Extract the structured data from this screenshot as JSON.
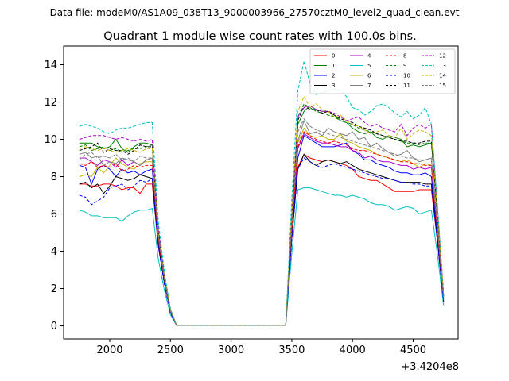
{
  "chart_data": {
    "type": "line",
    "suptitle": "Data file: modeM0/AS1A09_038T13_9000003966_27570cztM0_level2_quad_clean.evt",
    "title": "Quadrant 1 module wise count rates with 100.0s bins.",
    "xlabel": "",
    "ylabel": "",
    "x_offset_label": "+3.4204e8",
    "xlim": [
      1620,
      4870
    ],
    "ylim": [
      -0.7,
      15.0
    ],
    "xticks": [
      2000,
      2500,
      3000,
      3500,
      4000,
      4500
    ],
    "xtick_labels": [
      "2000",
      "2500",
      "3000",
      "3500",
      "4000",
      "4500"
    ],
    "yticks": [
      0,
      2,
      4,
      6,
      8,
      10,
      12,
      14
    ],
    "ytick_labels": [
      "0",
      "2",
      "4",
      "6",
      "8",
      "10",
      "12",
      "14"
    ],
    "grid": false,
    "legend_location": "upper-right",
    "legend_columns": 4,
    "x": [
      1750,
      1800,
      1850,
      1900,
      1950,
      2000,
      2050,
      2100,
      2150,
      2200,
      2250,
      2300,
      2350,
      2400,
      2450,
      2500,
      2550,
      2650,
      2750,
      2850,
      2950,
      3050,
      3150,
      3250,
      3350,
      3450,
      3500,
      3550,
      3600,
      3650,
      3700,
      3750,
      3800,
      3850,
      3900,
      3950,
      4000,
      4050,
      4100,
      4150,
      4200,
      4250,
      4300,
      4350,
      4400,
      4450,
      4500,
      4550,
      4600,
      4650,
      4700,
      4750
    ],
    "series": [
      {
        "name": "0",
        "color": "#ff0000",
        "dash": "solid",
        "values": [
          7.6,
          7.6,
          7.5,
          7.5,
          7.6,
          7.6,
          7.5,
          7.3,
          7.4,
          7.4,
          7.1,
          7.6,
          7.6,
          4.3,
          2.3,
          0.8,
          0.03,
          0.03,
          0.03,
          0.03,
          0.03,
          0.03,
          0.03,
          0.03,
          0.03,
          0.03,
          4.8,
          8.5,
          9.2,
          9.0,
          8.9,
          8.8,
          8.9,
          8.8,
          8.7,
          8.6,
          8.4,
          8.0,
          7.9,
          7.8,
          7.8,
          7.6,
          7.4,
          7.2,
          7.2,
          7.2,
          7.2,
          7.3,
          7.3,
          7.3,
          4.5,
          1.3
        ]
      },
      {
        "name": "1",
        "color": "#008000",
        "dash": "solid",
        "values": [
          9.8,
          9.8,
          9.8,
          9.6,
          9.5,
          9.6,
          10.0,
          9.5,
          9.3,
          9.6,
          9.8,
          9.8,
          9.7,
          5.0,
          2.6,
          0.9,
          0.03,
          0.03,
          0.03,
          0.03,
          0.03,
          0.03,
          0.03,
          0.03,
          0.03,
          0.03,
          5.8,
          10.8,
          11.5,
          11.8,
          11.6,
          11.5,
          11.5,
          11.3,
          11.0,
          10.9,
          10.6,
          10.4,
          10.3,
          10.4,
          10.1,
          10.0,
          10.2,
          10.1,
          10.0,
          9.6,
          9.7,
          9.6,
          9.7,
          9.8,
          6.0,
          1.6
        ]
      },
      {
        "name": "2",
        "color": "#0000ff",
        "dash": "solid",
        "values": [
          8.6,
          8.5,
          7.6,
          8.4,
          8.6,
          8.4,
          8.0,
          8.4,
          8.2,
          8.3,
          8.1,
          8.3,
          8.4,
          4.6,
          2.4,
          0.8,
          0.03,
          0.03,
          0.03,
          0.03,
          0.03,
          0.03,
          0.03,
          0.03,
          0.03,
          0.03,
          5.0,
          9.0,
          10.2,
          10.0,
          9.8,
          9.6,
          9.6,
          9.6,
          9.7,
          9.8,
          9.4,
          9.2,
          8.9,
          8.9,
          8.7,
          8.6,
          8.5,
          8.3,
          8.2,
          8.2,
          8.1,
          8.1,
          8.2,
          8.0,
          4.9,
          1.4
        ]
      },
      {
        "name": "3",
        "color": "#000000",
        "dash": "solid",
        "values": [
          7.6,
          7.7,
          7.4,
          7.6,
          7.1,
          7.5,
          8.0,
          7.9,
          7.8,
          7.9,
          8.1,
          8.0,
          7.9,
          4.4,
          2.3,
          0.8,
          0.03,
          0.03,
          0.03,
          0.03,
          0.03,
          0.03,
          0.03,
          0.03,
          0.03,
          0.03,
          4.8,
          8.4,
          9.2,
          8.8,
          8.6,
          8.8,
          8.9,
          8.8,
          8.7,
          8.8,
          8.6,
          8.4,
          8.3,
          8.2,
          8.1,
          8.0,
          7.9,
          7.8,
          7.7,
          7.7,
          7.7,
          7.7,
          7.6,
          7.6,
          4.6,
          1.3
        ]
      },
      {
        "name": "4",
        "color": "#b000d0",
        "dash": "solid",
        "values": [
          9.0,
          9.0,
          8.8,
          8.6,
          8.9,
          8.8,
          8.5,
          8.9,
          8.6,
          8.8,
          8.6,
          8.9,
          8.9,
          4.8,
          2.5,
          0.8,
          0.03,
          0.03,
          0.03,
          0.03,
          0.03,
          0.03,
          0.03,
          0.03,
          0.03,
          0.03,
          5.2,
          9.5,
          10.3,
          10.1,
          9.9,
          9.8,
          9.8,
          9.7,
          9.6,
          9.6,
          9.4,
          9.3,
          9.0,
          9.1,
          8.9,
          8.8,
          8.8,
          8.7,
          8.6,
          8.6,
          8.4,
          8.5,
          8.4,
          8.5,
          5.1,
          1.4
        ]
      },
      {
        "name": "5",
        "color": "#00c0c0",
        "dash": "solid",
        "values": [
          6.2,
          6.1,
          5.9,
          5.9,
          5.8,
          5.8,
          5.8,
          5.6,
          5.9,
          6.1,
          6.2,
          6.2,
          6.3,
          3.6,
          1.9,
          0.6,
          0.03,
          0.03,
          0.03,
          0.03,
          0.03,
          0.03,
          0.03,
          0.03,
          0.03,
          0.03,
          3.9,
          7.3,
          7.4,
          7.4,
          7.3,
          7.2,
          7.1,
          7.0,
          7.0,
          6.9,
          7.0,
          6.9,
          6.8,
          6.6,
          6.5,
          6.5,
          6.4,
          6.2,
          6.3,
          6.4,
          6.3,
          6.0,
          6.1,
          6.2,
          3.8,
          1.1
        ]
      },
      {
        "name": "6",
        "color": "#c8b400",
        "dash": "solid",
        "values": [
          8.0,
          8.1,
          8.0,
          8.5,
          8.2,
          8.6,
          9.0,
          8.7,
          8.5,
          8.4,
          8.7,
          8.8,
          8.8,
          4.8,
          2.5,
          0.8,
          0.03,
          0.03,
          0.03,
          0.03,
          0.03,
          0.03,
          0.03,
          0.03,
          0.03,
          0.03,
          5.3,
          9.8,
          10.6,
          10.2,
          10.1,
          10.2,
          10.0,
          10.0,
          10.3,
          9.9,
          9.8,
          9.6,
          9.5,
          9.4,
          9.2,
          9.1,
          9.0,
          8.9,
          8.8,
          8.9,
          8.7,
          8.5,
          8.7,
          8.6,
          5.2,
          1.5
        ]
      },
      {
        "name": "7",
        "color": "#808080",
        "dash": "solid",
        "values": [
          9.2,
          9.3,
          9.0,
          9.1,
          8.6,
          8.8,
          8.7,
          9.0,
          8.9,
          8.8,
          8.6,
          8.9,
          9.0,
          4.9,
          2.5,
          0.8,
          0.03,
          0.03,
          0.03,
          0.03,
          0.03,
          0.03,
          0.03,
          0.03,
          0.03,
          0.03,
          5.5,
          9.9,
          11.0,
          10.3,
          10.4,
          10.2,
          10.6,
          10.4,
          10.3,
          10.2,
          10.4,
          10.0,
          10.1,
          9.6,
          9.8,
          9.5,
          9.3,
          9.1,
          9.2,
          9.4,
          9.0,
          8.8,
          8.9,
          9.0,
          5.4,
          1.5
        ]
      },
      {
        "name": "8",
        "color": "#ff0000",
        "dash": "dashed",
        "values": [
          8.7,
          8.6,
          8.8,
          8.5,
          8.6,
          8.5,
          8.7,
          8.3,
          8.4,
          8.6,
          8.5,
          8.6,
          8.6,
          4.7,
          2.4,
          0.8,
          0.03,
          0.03,
          0.03,
          0.03,
          0.03,
          0.03,
          0.03,
          0.03,
          0.03,
          0.03,
          5.2,
          9.6,
          10.4,
          10.2,
          10.0,
          9.9,
          9.8,
          9.9,
          9.8,
          9.7,
          9.5,
          9.4,
          9.4,
          9.3,
          9.2,
          9.1,
          9.0,
          8.9,
          8.8,
          8.8,
          8.7,
          8.7,
          8.6,
          8.6,
          5.2,
          1.4
        ]
      },
      {
        "name": "9",
        "color": "#008000",
        "dash": "dashed",
        "values": [
          9.6,
          9.7,
          9.4,
          9.5,
          9.6,
          9.4,
          9.5,
          9.3,
          9.4,
          9.5,
          9.5,
          9.6,
          9.7,
          5.1,
          2.6,
          0.9,
          0.03,
          0.03,
          0.03,
          0.03,
          0.03,
          0.03,
          0.03,
          0.03,
          0.03,
          0.03,
          6.0,
          11.2,
          11.9,
          11.7,
          11.5,
          11.4,
          11.3,
          11.2,
          11.0,
          10.9,
          10.8,
          10.6,
          10.5,
          10.4,
          10.3,
          10.2,
          10.1,
          10.0,
          9.9,
          9.8,
          9.8,
          9.7,
          9.8,
          9.8,
          5.9,
          1.6
        ]
      },
      {
        "name": "10",
        "color": "#0000ff",
        "dash": "dashed",
        "values": [
          7.0,
          6.9,
          6.5,
          6.7,
          6.9,
          7.4,
          7.5,
          7.6,
          7.3,
          7.5,
          7.8,
          7.7,
          7.9,
          4.3,
          2.2,
          0.7,
          0.03,
          0.03,
          0.03,
          0.03,
          0.03,
          0.03,
          0.03,
          0.03,
          0.03,
          0.03,
          4.6,
          8.4,
          9.0,
          8.8,
          8.6,
          8.5,
          8.6,
          8.7,
          8.6,
          8.5,
          8.4,
          8.3,
          8.2,
          8.1,
          8.0,
          7.9,
          7.9,
          7.8,
          7.7,
          7.7,
          7.6,
          7.6,
          7.5,
          7.5,
          4.5,
          1.3
        ]
      },
      {
        "name": "11",
        "color": "#000000",
        "dash": "dashed",
        "values": [
          9.4,
          9.5,
          9.6,
          9.8,
          9.3,
          9.5,
          9.4,
          9.4,
          9.2,
          9.4,
          9.7,
          9.6,
          9.6,
          5.1,
          2.6,
          0.8,
          0.03,
          0.03,
          0.03,
          0.03,
          0.03,
          0.03,
          0.03,
          0.03,
          0.03,
          0.03,
          5.9,
          11.0,
          11.8,
          11.6,
          11.6,
          11.4,
          11.5,
          11.3,
          11.1,
          11.0,
          10.9,
          10.7,
          10.6,
          10.5,
          10.3,
          10.2,
          10.1,
          10.0,
          9.9,
          9.9,
          9.8,
          9.8,
          9.9,
          9.9,
          5.9,
          1.6
        ]
      },
      {
        "name": "12",
        "color": "#b000d0",
        "dash": "dashed",
        "values": [
          10.0,
          10.1,
          10.2,
          10.2,
          10.2,
          10.1,
          10.0,
          10.1,
          10.0,
          9.9,
          10.0,
          9.9,
          10.0,
          5.3,
          2.7,
          0.9,
          0.03,
          0.03,
          0.03,
          0.03,
          0.03,
          0.03,
          0.03,
          0.03,
          0.03,
          0.03,
          6.0,
          11.2,
          11.7,
          11.8,
          11.6,
          11.5,
          11.5,
          11.4,
          11.2,
          11.0,
          11.1,
          11.2,
          10.9,
          10.7,
          10.8,
          10.6,
          10.5,
          10.4,
          10.8,
          10.2,
          10.6,
          10.8,
          10.6,
          10.8,
          6.3,
          1.8
        ]
      },
      {
        "name": "13",
        "color": "#00c0c0",
        "dash": "dashed",
        "values": [
          10.7,
          10.8,
          10.7,
          10.6,
          10.4,
          10.3,
          10.5,
          10.6,
          10.6,
          10.7,
          10.8,
          10.9,
          10.9,
          5.6,
          2.9,
          0.9,
          0.03,
          0.03,
          0.03,
          0.03,
          0.03,
          0.03,
          0.03,
          0.03,
          0.03,
          0.03,
          6.8,
          12.6,
          14.2,
          13.0,
          12.4,
          12.5,
          12.6,
          12.7,
          12.6,
          12.3,
          11.7,
          11.6,
          11.3,
          11.5,
          11.8,
          11.9,
          11.7,
          11.4,
          11.2,
          11.5,
          11.1,
          11.3,
          11.7,
          10.8,
          6.4,
          1.7
        ]
      },
      {
        "name": "14",
        "color": "#c8b400",
        "dash": "dashed",
        "values": [
          9.5,
          9.6,
          9.5,
          9.4,
          9.5,
          9.4,
          9.3,
          9.4,
          9.5,
          9.4,
          9.3,
          9.5,
          9.5,
          5.0,
          2.6,
          0.9,
          0.03,
          0.03,
          0.03,
          0.03,
          0.03,
          0.03,
          0.03,
          0.03,
          0.03,
          0.03,
          6.1,
          11.5,
          12.3,
          11.7,
          11.9,
          11.6,
          11.5,
          11.2,
          11.3,
          11.0,
          10.8,
          10.7,
          10.5,
          10.3,
          10.4,
          10.5,
          10.2,
          10.1,
          10.6,
          10.0,
          10.3,
          10.5,
          10.4,
          10.2,
          6.1,
          1.7
        ]
      },
      {
        "name": "15",
        "color": "#808080",
        "dash": "dashed",
        "values": [
          8.9,
          9.2,
          9.3,
          9.0,
          9.1,
          9.0,
          9.2,
          8.9,
          9.0,
          8.8,
          9.1,
          9.0,
          9.0,
          4.9,
          2.5,
          0.8,
          0.03,
          0.03,
          0.03,
          0.03,
          0.03,
          0.03,
          0.03,
          0.03,
          0.03,
          0.03,
          5.6,
          10.4,
          11.1,
          10.7,
          10.5,
          10.4,
          10.3,
          10.2,
          10.1,
          10.0,
          9.9,
          9.8,
          9.7,
          9.6,
          9.5,
          9.4,
          9.3,
          9.2,
          9.1,
          9.0,
          9.0,
          8.9,
          8.9,
          8.9,
          5.3,
          1.5
        ]
      }
    ]
  }
}
